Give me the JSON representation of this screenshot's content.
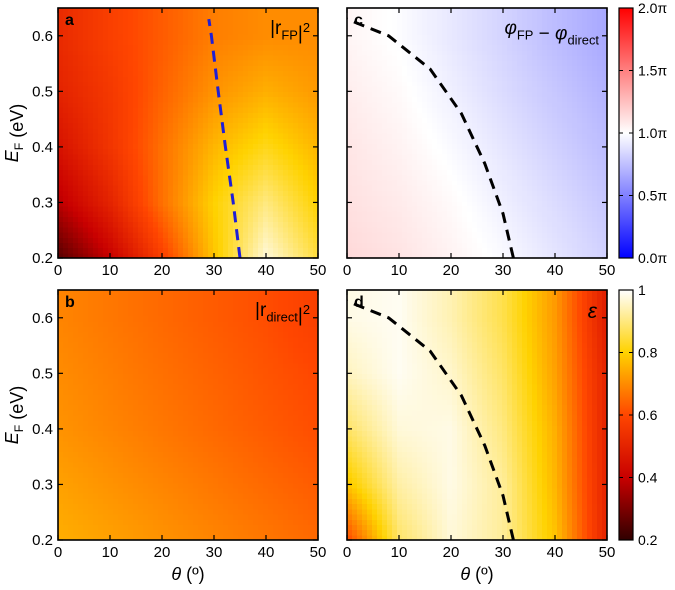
{
  "chart_data": [
    {
      "panel": "a",
      "type": "heatmap",
      "label": "a",
      "title": "|r_FP|²",
      "title_parts": {
        "main": "|r",
        "sub": "FP",
        "tail": "|²"
      },
      "xlabel": "θ (º)",
      "ylabel": "E_F (eV)",
      "xlim": [
        0,
        50
      ],
      "ylim": [
        0.2,
        0.65
      ],
      "xticks": [
        "0",
        "10",
        "20",
        "30",
        "40",
        "50"
      ],
      "yticks": [
        "0.2",
        "0.3",
        "0.4",
        "0.5",
        "0.6"
      ],
      "colormap": "hot",
      "color_range": [
        0.2,
        1.0
      ],
      "field": [
        [
          0.25,
          0.4,
          0.58,
          0.78,
          0.97,
          0.85
        ],
        [
          0.38,
          0.5,
          0.66,
          0.8,
          0.9,
          0.8
        ],
        [
          0.45,
          0.55,
          0.66,
          0.76,
          0.82,
          0.76
        ],
        [
          0.5,
          0.56,
          0.64,
          0.71,
          0.75,
          0.72
        ],
        [
          0.52,
          0.58,
          0.63,
          0.68,
          0.7,
          0.7
        ]
      ],
      "field_axes": {
        "x": [
          0,
          10,
          20,
          30,
          40,
          50
        ],
        "y": [
          0.2,
          0.3,
          0.4,
          0.5,
          0.6
        ]
      },
      "line": {
        "style": "dashed",
        "color": "#1f1fd6",
        "points": [
          [
            35,
            0.2
          ],
          [
            33.7,
            0.3
          ],
          [
            32.2,
            0.4
          ],
          [
            30.8,
            0.5
          ],
          [
            29.5,
            0.6
          ],
          [
            29,
            0.63
          ]
        ]
      }
    },
    {
      "panel": "c",
      "type": "heatmap",
      "label": "c",
      "title": "φ_FP − φ_direct",
      "title_parts": {
        "a": "φ",
        "a_sub": "FP",
        "minus": " − ",
        "b": "φ",
        "b_sub": "direct"
      },
      "xlabel": "θ (º)",
      "ylabel": "",
      "xlim": [
        0,
        50
      ],
      "ylim": [
        0.2,
        0.65
      ],
      "xticks": [
        "0",
        "10",
        "20",
        "30",
        "40",
        "50"
      ],
      "colormap": "bwr",
      "color_range": [
        0,
        2
      ],
      "field": [
        [
          1.15,
          1.11,
          1.05,
          0.98,
          0.9,
          0.82
        ],
        [
          1.12,
          1.08,
          1.02,
          0.94,
          0.86,
          0.78
        ],
        [
          1.1,
          1.05,
          0.98,
          0.9,
          0.82,
          0.74
        ],
        [
          1.07,
          1.02,
          0.94,
          0.86,
          0.78,
          0.7
        ],
        [
          1.04,
          0.99,
          0.91,
          0.83,
          0.74,
          0.66
        ]
      ],
      "field_axes": {
        "x": [
          0,
          10,
          20,
          30,
          40,
          50
        ],
        "y": [
          0.2,
          0.3,
          0.4,
          0.5,
          0.6
        ]
      },
      "line": {
        "style": "dashed",
        "color": "#000000",
        "points": [
          [
            32,
            0.2
          ],
          [
            30,
            0.28
          ],
          [
            26.5,
            0.37
          ],
          [
            22,
            0.46
          ],
          [
            16,
            0.54
          ],
          [
            8,
            0.6
          ],
          [
            0,
            0.63
          ]
        ]
      },
      "colorbar": {
        "ticks": [
          "0.0π",
          "0.5π",
          "1.0π",
          "1.5π",
          "2.0π"
        ],
        "tick_values": [
          0,
          0.5,
          1,
          1.5,
          2
        ]
      }
    },
    {
      "panel": "b",
      "type": "heatmap",
      "label": "b",
      "title": "|r_direct|²",
      "title_parts": {
        "main": "|r",
        "sub": "direct",
        "tail": "|²"
      },
      "xlabel": "θ (º)",
      "ylabel": "E_F (eV)",
      "xlim": [
        0,
        50
      ],
      "ylim": [
        0.2,
        0.65
      ],
      "xticks": [
        "0",
        "10",
        "20",
        "30",
        "40",
        "50"
      ],
      "yticks": [
        "0.2",
        "0.3",
        "0.4",
        "0.5",
        "0.6"
      ],
      "colormap": "hot",
      "color_range": [
        0.2,
        1.0
      ],
      "field": [
        [
          0.75,
          0.73,
          0.71,
          0.69,
          0.67,
          0.65
        ],
        [
          0.73,
          0.71,
          0.69,
          0.67,
          0.65,
          0.63
        ],
        [
          0.71,
          0.69,
          0.67,
          0.65,
          0.63,
          0.61
        ],
        [
          0.7,
          0.68,
          0.66,
          0.64,
          0.62,
          0.6
        ],
        [
          0.69,
          0.67,
          0.65,
          0.63,
          0.61,
          0.58
        ]
      ],
      "field_axes": {
        "x": [
          0,
          10,
          20,
          30,
          40,
          50
        ],
        "y": [
          0.2,
          0.3,
          0.4,
          0.5,
          0.6
        ]
      }
    },
    {
      "panel": "d",
      "type": "heatmap",
      "label": "d",
      "title": "ε",
      "xlabel": "θ (º)",
      "ylabel": "",
      "xlim": [
        0,
        50
      ],
      "ylim": [
        0.2,
        0.65
      ],
      "xticks": [
        "0",
        "10",
        "20",
        "30",
        "40",
        "50"
      ],
      "colormap": "hot",
      "color_range": [
        0.2,
        1.0
      ],
      "field": [
        [
          0.6,
          0.88,
          0.97,
          0.92,
          0.78,
          0.5
        ],
        [
          0.78,
          0.93,
          0.98,
          0.92,
          0.76,
          0.5
        ],
        [
          0.88,
          0.97,
          0.98,
          0.9,
          0.75,
          0.5
        ],
        [
          0.95,
          0.99,
          0.96,
          0.88,
          0.73,
          0.5
        ],
        [
          0.98,
          0.99,
          0.94,
          0.86,
          0.72,
          0.48
        ]
      ],
      "field_axes": {
        "x": [
          0,
          10,
          20,
          30,
          40,
          50
        ],
        "y": [
          0.2,
          0.3,
          0.4,
          0.5,
          0.6
        ]
      },
      "line": {
        "style": "dashed",
        "color": "#000000",
        "points": [
          [
            32,
            0.2
          ],
          [
            30,
            0.28
          ],
          [
            26.5,
            0.37
          ],
          [
            22,
            0.46
          ],
          [
            16,
            0.54
          ],
          [
            8,
            0.6
          ],
          [
            0,
            0.63
          ]
        ]
      },
      "colorbar": {
        "ticks": [
          "0.2",
          "0.4",
          "0.6",
          "0.8",
          "1"
        ],
        "tick_values": [
          0.2,
          0.4,
          0.6,
          0.8,
          1.0
        ]
      }
    }
  ]
}
